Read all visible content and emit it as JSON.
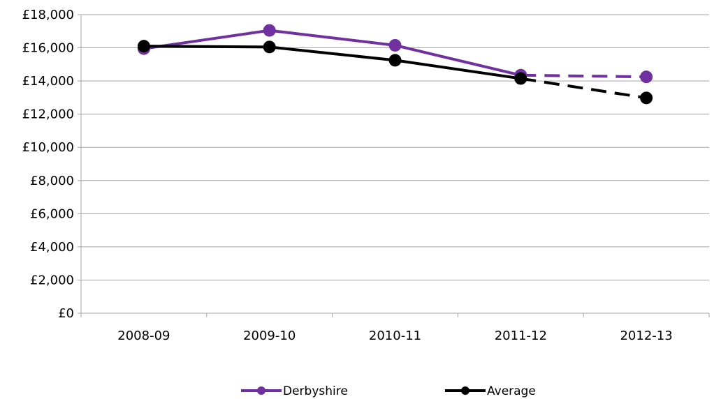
{
  "chart_data": {
    "type": "line",
    "categories": [
      "2008-09",
      "2009-10",
      "2010-11",
      "2011-12",
      "2012-13"
    ],
    "y_ticks": [
      "£0",
      "£2,000",
      "£4,000",
      "£6,000",
      "£8,000",
      "£10,000",
      "£12,000",
      "£14,000",
      "£16,000",
      "£18,000"
    ],
    "ylim": [
      0,
      18000
    ],
    "grid": true,
    "legend_position": "bottom",
    "projected_from_index": 3,
    "series": [
      {
        "name": "Derbyshire",
        "color": "#7030A0",
        "values": [
          15950,
          17050,
          16150,
          14350,
          14250
        ]
      },
      {
        "name": "Average",
        "color": "#000000",
        "values": [
          16100,
          16050,
          15250,
          14150,
          12980
        ]
      }
    ]
  }
}
